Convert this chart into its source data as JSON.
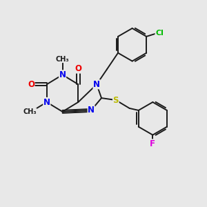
{
  "bg_color": "#e8e8e8",
  "bond_color": "#1a1a1a",
  "bond_width": 1.4,
  "atom_colors": {
    "N": "#0000ee",
    "O": "#ee0000",
    "S": "#bbbb00",
    "Cl": "#00bb00",
    "F": "#dd00dd",
    "C": "#1a1a1a"
  },
  "font_size_atom": 8.5,
  "font_size_sub": 7.0
}
